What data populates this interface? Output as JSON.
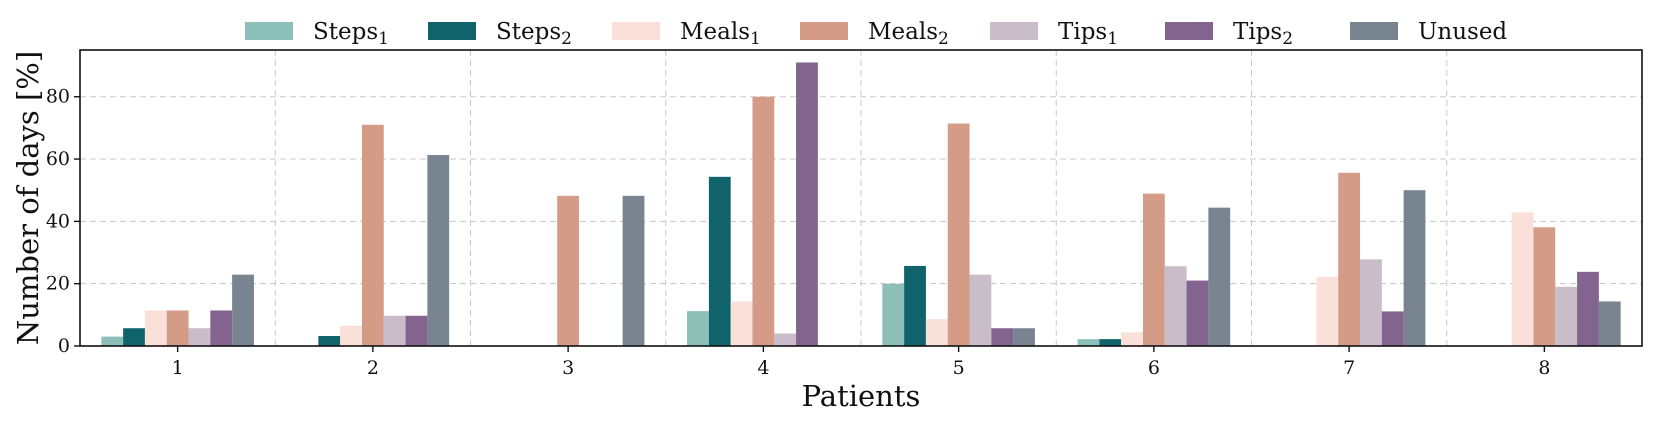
{
  "chart_data": {
    "type": "bar",
    "title": "",
    "xlabel": "Patients",
    "ylabel": "Number of days [%]",
    "ylim": [
      0,
      95
    ],
    "yticks": [
      0,
      20,
      40,
      60,
      80
    ],
    "grid": true,
    "legend_position": "top",
    "categories": [
      "1",
      "2",
      "3",
      "4",
      "5",
      "6",
      "7",
      "8"
    ],
    "series": [
      {
        "name": "Steps",
        "sub": "1",
        "color": "#8dbfb9",
        "values": [
          3,
          0,
          0,
          11.2,
          20,
          2.2,
          0,
          0
        ]
      },
      {
        "name": "Steps",
        "sub": "2",
        "color": "#10636a",
        "values": [
          5.7,
          3.2,
          0,
          54.3,
          25.7,
          2.2,
          0,
          0
        ]
      },
      {
        "name": "Meals",
        "sub": "1",
        "color": "#f9e0d8",
        "values": [
          11.4,
          6.5,
          0,
          14.3,
          8.6,
          4.4,
          22.2,
          42.9
        ]
      },
      {
        "name": "Meals",
        "sub": "2",
        "color": "#d49b87",
        "values": [
          11.4,
          71,
          48.2,
          80,
          71.4,
          48.9,
          55.6,
          38.1
        ]
      },
      {
        "name": "Tips",
        "sub": "1",
        "color": "#c8bdc8",
        "values": [
          5.7,
          9.7,
          0,
          4,
          22.9,
          25.6,
          27.8,
          19
        ]
      },
      {
        "name": "Tips",
        "sub": "2",
        "color": "#82648f",
        "values": [
          11.4,
          9.7,
          0,
          91,
          5.7,
          21,
          11.1,
          23.8
        ]
      },
      {
        "name": "Unused",
        "sub": "",
        "color": "#788490",
        "values": [
          22.9,
          61.3,
          48.2,
          0,
          5.7,
          44.4,
          50,
          14.3
        ]
      }
    ]
  }
}
